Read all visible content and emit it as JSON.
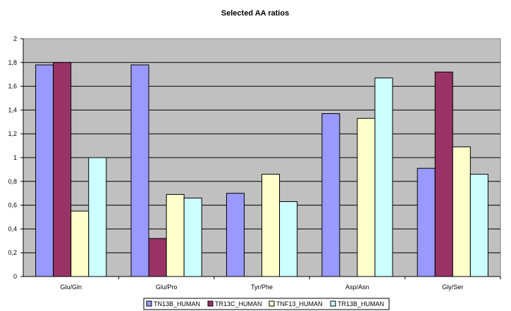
{
  "chart_data": {
    "type": "bar",
    "title": "Selected AA ratios",
    "xlabel": "",
    "ylabel": "",
    "categories": [
      "Glu/Gln",
      "Glu/Pro",
      "Tyr/Phe",
      "Asp/Asn",
      "Gly/Ser"
    ],
    "ylim": [
      0,
      2
    ],
    "yticks": [
      "0",
      "0,2",
      "0,4",
      "0,6",
      "0,8",
      "1",
      "1,2",
      "1,4",
      "1,6",
      "1,8",
      "2"
    ],
    "grid": true,
    "legend_position": "bottom",
    "plot_background": "#c0c0c0",
    "series": [
      {
        "name": "TN13B_HUMAN",
        "color": "#9999ff",
        "values": [
          1.78,
          1.78,
          0.7,
          1.37,
          0.91
        ]
      },
      {
        "name": "TR13C_HUMAN",
        "color": "#993366",
        "values": [
          1.8,
          0.32,
          0,
          0,
          1.72
        ]
      },
      {
        "name": "TNF13_HUMAN",
        "color": "#ffffcc",
        "values": [
          0.55,
          0.69,
          0.86,
          1.33,
          1.09
        ]
      },
      {
        "name": "TR13B_HUMAN",
        "color": "#ccffff",
        "values": [
          1.0,
          0.66,
          0.63,
          1.67,
          0.86
        ]
      }
    ]
  }
}
